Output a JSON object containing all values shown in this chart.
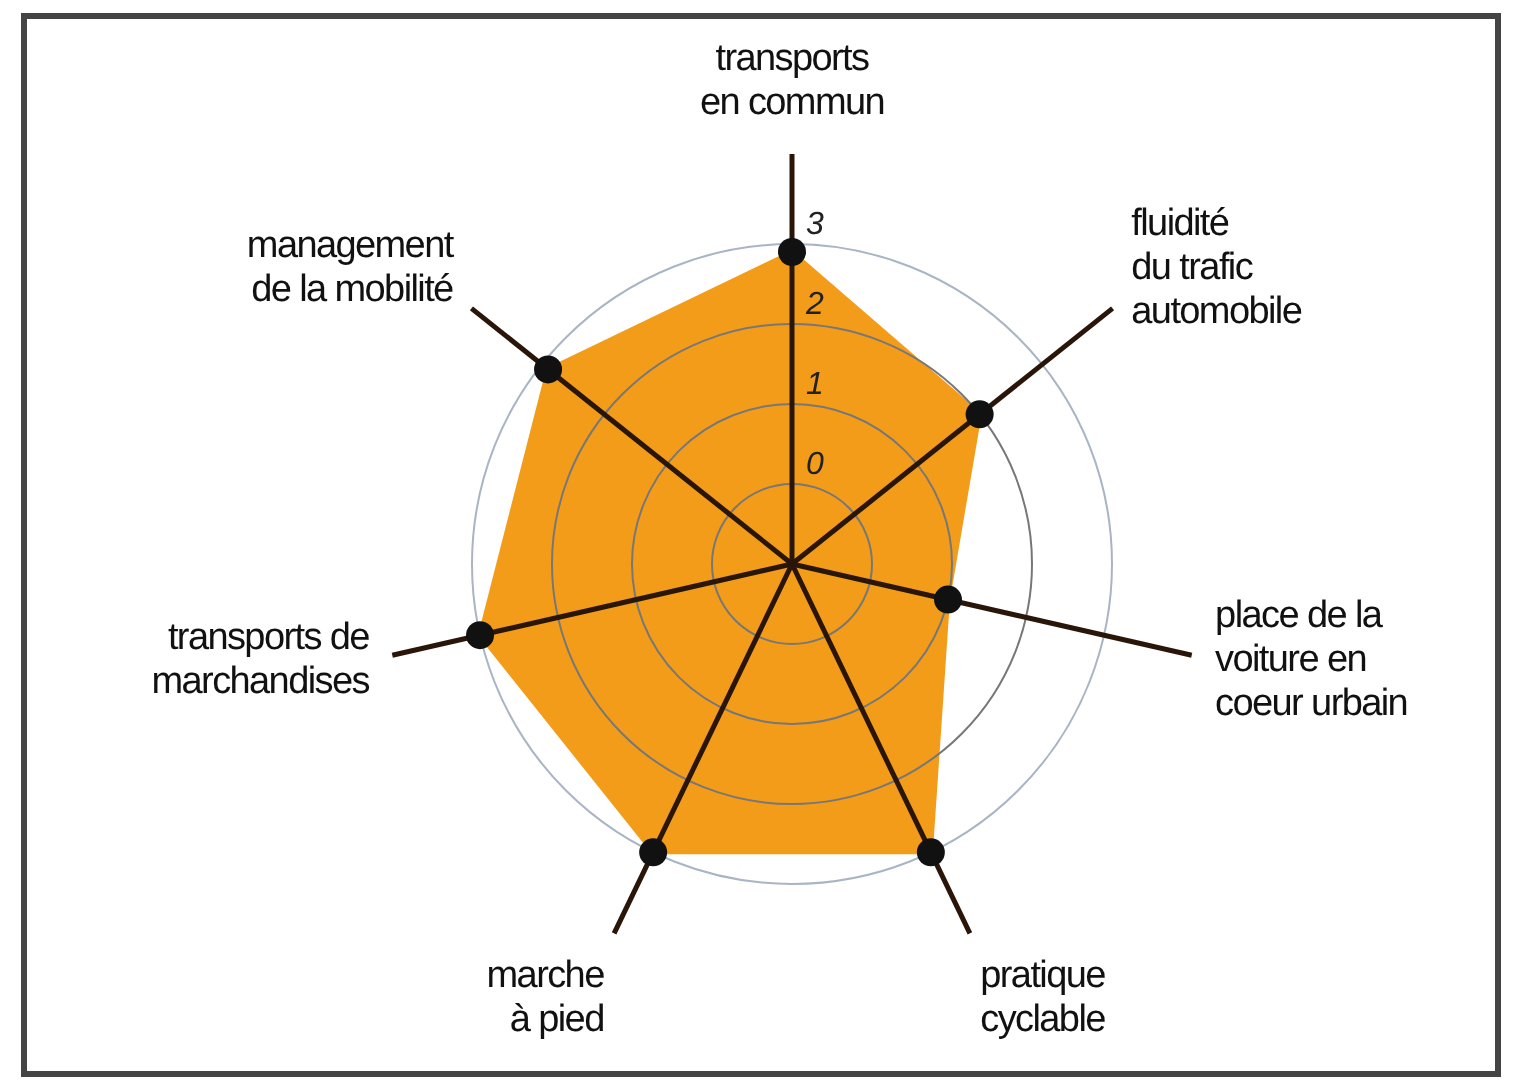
{
  "chart_data": {
    "type": "radar",
    "categories": [
      "transports\nen commun",
      "fluidité\ndu trafic\nautomobile",
      "place de la\nvoiture en\ncoeur urbain",
      "pratique\ncyclable",
      "marche\nà pied",
      "transports de\nmarchandises",
      "management\nde la mobilité"
    ],
    "series": [
      {
        "color": "#f39c1a",
        "values": [
          2.9,
          2,
          1,
          3,
          3,
          3,
          2.9
        ]
      }
    ],
    "ylim": [
      -1,
      3
    ],
    "yticks": [
      0,
      1,
      2,
      3
    ],
    "marker": "circle",
    "grid": true
  }
}
